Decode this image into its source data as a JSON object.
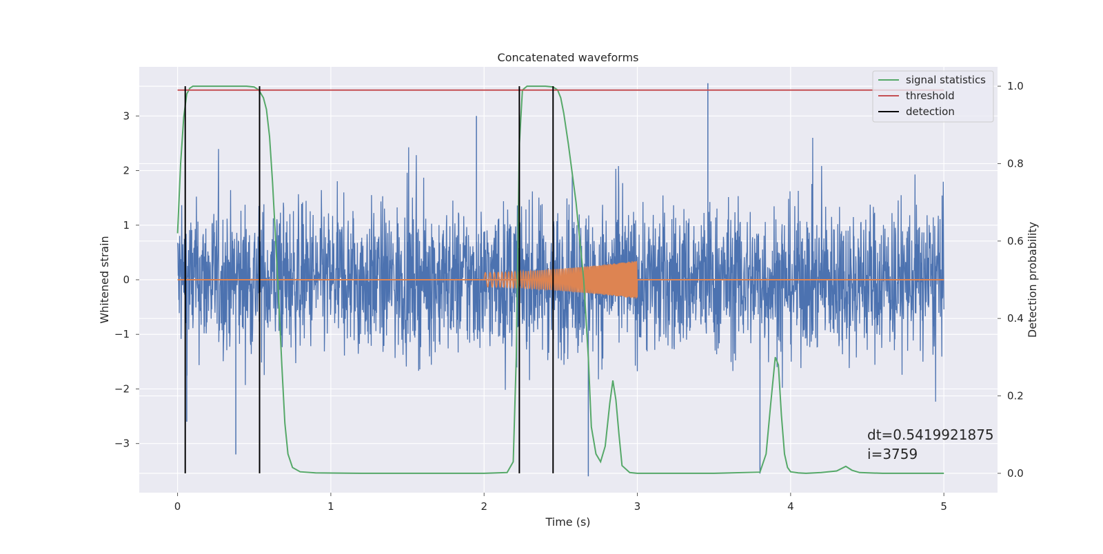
{
  "chart_data": {
    "type": "line",
    "title": "Concatenated waveforms",
    "xlabel": "Time (s)",
    "ylabel_left": "Whitened strain",
    "ylabel_right": "Detection probability",
    "xlim": [
      -0.25,
      5.35
    ],
    "ylim_left": [
      -3.9,
      3.9
    ],
    "ylim_right": [
      -0.05,
      1.05
    ],
    "x_ticks": [
      0,
      1,
      2,
      3,
      4,
      5
    ],
    "x_tick_labels": [
      "0",
      "1",
      "2",
      "3",
      "4",
      "5"
    ],
    "y_left_ticks": [
      -3,
      -2,
      -1,
      0,
      1,
      2,
      3
    ],
    "y_left_tick_labels": [
      "−3",
      "−2",
      "−1",
      "0",
      "1",
      "2",
      "3"
    ],
    "y_right_ticks": [
      0.0,
      0.2,
      0.4,
      0.6,
      0.8,
      1.0
    ],
    "y_right_tick_labels": [
      "0.0",
      "0.2",
      "0.4",
      "0.6",
      "0.8",
      "1.0"
    ],
    "grid": true,
    "legend": {
      "position": "top-right",
      "entries": [
        {
          "label": "signal statistics",
          "color": "#55a868"
        },
        {
          "label": "threshold",
          "color": "#c44e52"
        },
        {
          "label": "detection",
          "color": "#000000"
        }
      ]
    },
    "strain_noise": {
      "color": "#4c72b0",
      "x_start": 0,
      "x_end": 5,
      "typical_range": [
        -1.8,
        2.0
      ],
      "peaks": [
        {
          "x": 0.38,
          "y": -3.2
        },
        {
          "x": 0.06,
          "y": -2.6
        },
        {
          "x": 3.46,
          "y": 3.6
        },
        {
          "x": 3.8,
          "y": -3.55
        },
        {
          "x": 2.68,
          "y": -3.6
        },
        {
          "x": 1.95,
          "y": 3.0
        }
      ]
    },
    "injected_signal": {
      "color": "#dd8452",
      "x_start": 2.0,
      "x_end": 3.0,
      "amplitude_start": 0.13,
      "amplitude_end": 0.35
    },
    "series": [
      {
        "name": "signal statistics",
        "axis": "right",
        "color": "#55a868",
        "x": [
          0,
          0.02,
          0.04,
          0.06,
          0.08,
          0.1,
          0.15,
          0.3,
          0.45,
          0.5,
          0.53,
          0.56,
          0.58,
          0.6,
          0.62,
          0.64,
          0.66,
          0.68,
          0.7,
          0.72,
          0.75,
          0.8,
          0.9,
          1.2,
          1.6,
          2.0,
          2.15,
          2.19,
          2.21,
          2.23,
          2.25,
          2.28,
          2.3,
          2.4,
          2.45,
          2.48,
          2.5,
          2.52,
          2.55,
          2.6,
          2.65,
          2.68,
          2.7,
          2.73,
          2.76,
          2.79,
          2.82,
          2.84,
          2.86,
          2.88,
          2.9,
          2.95,
          3.0,
          3.2,
          3.5,
          3.8,
          3.84,
          3.87,
          3.9,
          3.92,
          3.94,
          3.96,
          3.98,
          4.0,
          4.05,
          4.1,
          4.2,
          4.3,
          4.36,
          4.4,
          4.45,
          4.6,
          4.8,
          5.0
        ],
        "y": [
          0.62,
          0.8,
          0.92,
          0.98,
          0.995,
          1.0,
          1.0,
          1.0,
          1.0,
          0.998,
          0.99,
          0.97,
          0.94,
          0.87,
          0.75,
          0.6,
          0.45,
          0.28,
          0.13,
          0.05,
          0.015,
          0.004,
          0.001,
          0.0,
          0.0,
          0.0,
          0.002,
          0.03,
          0.3,
          0.85,
          0.99,
          1.0,
          1.0,
          1.0,
          0.998,
          0.99,
          0.97,
          0.93,
          0.85,
          0.7,
          0.5,
          0.3,
          0.12,
          0.05,
          0.03,
          0.07,
          0.18,
          0.24,
          0.19,
          0.1,
          0.02,
          0.002,
          0.0,
          0.0,
          0.0,
          0.003,
          0.05,
          0.18,
          0.3,
          0.28,
          0.15,
          0.05,
          0.015,
          0.004,
          0.001,
          0.0,
          0.002,
          0.006,
          0.018,
          0.008,
          0.002,
          0.0,
          0.0,
          0.0
        ]
      },
      {
        "name": "threshold",
        "axis": "right",
        "color": "#c44e52",
        "x": [
          0,
          5
        ],
        "y": [
          0.99,
          0.99
        ]
      },
      {
        "name": "detection",
        "axis": "right",
        "color": "#000000",
        "type": "vlines",
        "x": [
          0.05,
          0.535,
          2.23,
          2.45
        ]
      }
    ],
    "annotations": [
      {
        "text": "dt=0.5419921875",
        "x": 4.5,
        "y": -2.93
      },
      {
        "text": " i=3759",
        "x": 4.5,
        "y": -3.28
      }
    ]
  }
}
